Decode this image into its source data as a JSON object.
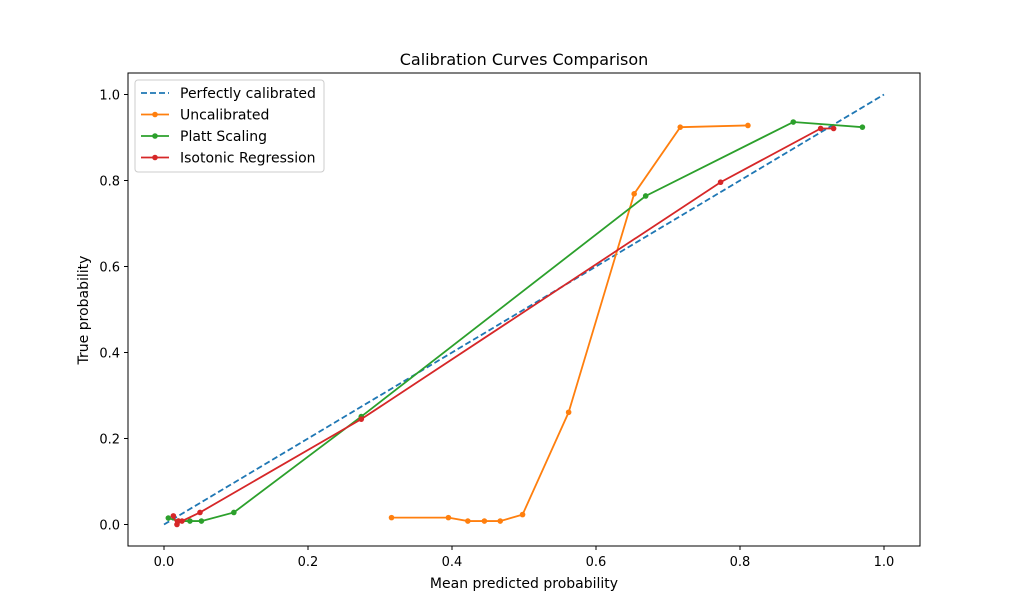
{
  "chart_data": {
    "type": "line",
    "title": "Calibration Curves Comparison",
    "xlabel": "Mean predicted probability",
    "ylabel": "True probability",
    "xlim": [
      -0.05,
      1.05
    ],
    "ylim": [
      -0.05,
      1.05
    ],
    "xticks": [
      0.0,
      0.2,
      0.4,
      0.6,
      0.8,
      1.0
    ],
    "yticks": [
      0.0,
      0.2,
      0.4,
      0.6,
      0.8,
      1.0
    ],
    "xtick_labels": [
      "0.0",
      "0.2",
      "0.4",
      "0.6",
      "0.8",
      "1.0"
    ],
    "ytick_labels": [
      "0.0",
      "0.2",
      "0.4",
      "0.6",
      "0.8",
      "1.0"
    ],
    "grid": false,
    "legend_position": "top-left",
    "series": [
      {
        "name": "Perfectly calibrated",
        "color": "#1f77b4",
        "style": "dashed",
        "markers": false,
        "x": [
          0.0,
          1.0
        ],
        "y": [
          0.0,
          1.0
        ]
      },
      {
        "name": "Uncalibrated",
        "color": "#ff7f0e",
        "style": "solid",
        "markers": true,
        "x": [
          0.316,
          0.395,
          0.422,
          0.445,
          0.467,
          0.498,
          0.562,
          0.653,
          0.717,
          0.811
        ],
        "y": [
          0.016,
          0.016,
          0.008,
          0.008,
          0.008,
          0.023,
          0.261,
          0.769,
          0.924,
          0.928
        ]
      },
      {
        "name": "Platt Scaling",
        "color": "#2ca02c",
        "style": "solid",
        "markers": true,
        "x": [
          0.006,
          0.02,
          0.036,
          0.052,
          0.097,
          0.274,
          0.669,
          0.874,
          0.97
        ],
        "y": [
          0.015,
          0.008,
          0.008,
          0.008,
          0.028,
          0.251,
          0.764,
          0.936,
          0.924
        ]
      },
      {
        "name": "Isotonic Regression",
        "color": "#d62728",
        "style": "solid",
        "markers": true,
        "x": [
          0.013,
          0.018,
          0.02,
          0.025,
          0.05,
          0.274,
          0.773,
          0.912,
          0.93
        ],
        "y": [
          0.02,
          0.0,
          0.008,
          0.008,
          0.028,
          0.245,
          0.796,
          0.921,
          0.921
        ]
      }
    ]
  }
}
